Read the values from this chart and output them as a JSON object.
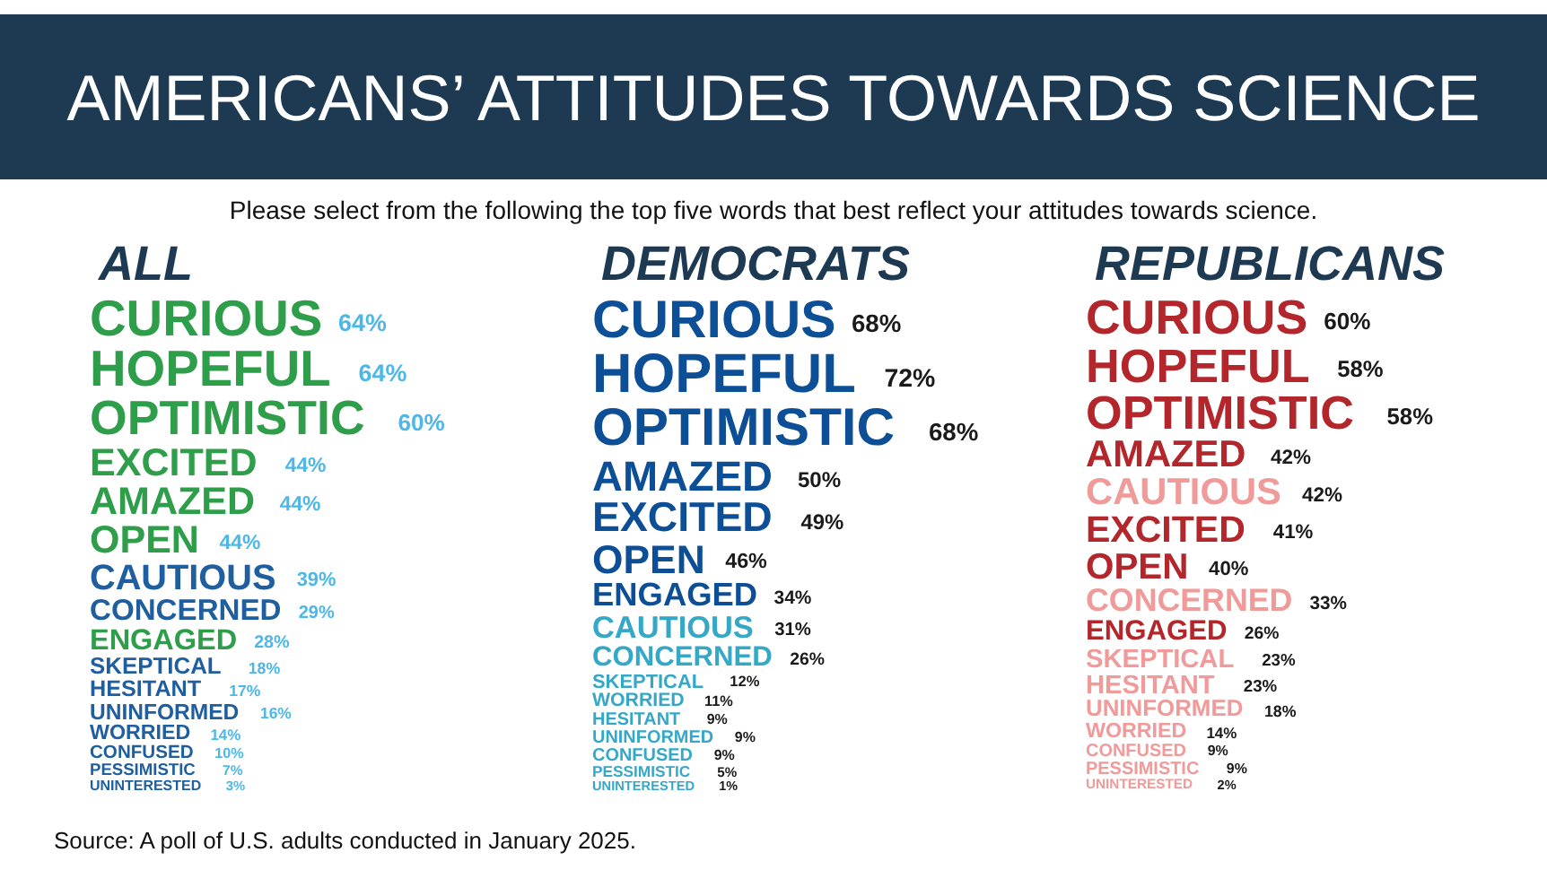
{
  "chart_data": [
    {
      "type": "other",
      "title": "AMERICANS’ ATTITUDES TOWARDS SCIENCE",
      "subtitle": "Please select from the following the top five words that best reflect your attitudes towards science.",
      "annotations": [
        "Source: A poll of U.S. adults conducted in January 2025."
      ],
      "xlabel": "ALL",
      "categories": [
        "CURIOUS",
        "HOPEFUL",
        "OPTIMISTIC",
        "EXCITED",
        "AMAZED",
        "OPEN",
        "CAUTIOUS",
        "CONCERNED",
        "ENGAGED",
        "SKEPTICAL",
        "HESITANT",
        "UNINFORMED",
        "WORRIED",
        "CONFUSED",
        "PESSIMISTIC",
        "UNINTERESTED"
      ],
      "values": [
        64,
        64,
        60,
        44,
        44,
        44,
        39,
        29,
        28,
        18,
        17,
        16,
        14,
        10,
        7,
        3
      ],
      "value_labels": [
        "64%",
        "64%",
        "60%",
        "44%",
        "44%",
        "44%",
        "39%",
        "29%",
        "28%",
        "18%",
        "17%",
        "16%",
        "14%",
        "10%",
        "7%",
        "3%"
      ],
      "colors": [
        "#2e9e4a",
        "#2e9e4a",
        "#2e9e4a",
        "#2e9e4a",
        "#2e9e4a",
        "#2e9e4a",
        "#1f5fa0",
        "#1f5fa0",
        "#2e9e4a",
        "#1f5fa0",
        "#1f5fa0",
        "#1f5fa0",
        "#1f5fa0",
        "#1f5fa0",
        "#1f5fa0",
        "#1f5fa0"
      ]
    },
    {
      "type": "other",
      "xlabel": "DEMOCRATS",
      "categories": [
        "CURIOUS",
        "HOPEFUL",
        "OPTIMISTIC",
        "AMAZED",
        "EXCITED",
        "OPEN",
        "ENGAGED",
        "CAUTIOUS",
        "CONCERNED",
        "SKEPTICAL",
        "WORRIED",
        "HESITANT",
        "UNINFORMED",
        "CONFUSED",
        "PESSIMISTIC",
        "UNINTERESTED"
      ],
      "values": [
        68,
        72,
        68,
        50,
        49,
        46,
        34,
        31,
        26,
        12,
        11,
        9,
        9,
        9,
        5,
        1
      ],
      "value_labels": [
        "68%",
        "72%",
        "68%",
        "50%",
        "49%",
        "46%",
        "34%",
        "31%",
        "26%",
        "12%",
        "11%",
        "9%",
        "9%",
        "9%",
        "5%",
        "1%"
      ],
      "colors": [
        "#0d4f96",
        "#0d4f96",
        "#0d4f96",
        "#0d4f96",
        "#0d4f96",
        "#0d4f96",
        "#0d4f96",
        "#35a8c8",
        "#35a8c8",
        "#35a8c8",
        "#35a8c8",
        "#35a8c8",
        "#35a8c8",
        "#35a8c8",
        "#35a8c8",
        "#35a8c8"
      ]
    },
    {
      "type": "other",
      "xlabel": "REPUBLICANS",
      "categories": [
        "CURIOUS",
        "HOPEFUL",
        "OPTIMISTIC",
        "AMAZED",
        "CAUTIOUS",
        "EXCITED",
        "OPEN",
        "CONCERNED",
        "ENGAGED",
        "SKEPTICAL",
        "HESITANT",
        "UNINFORMED",
        "WORRIED",
        "CONFUSED",
        "PESSIMISTIC",
        "UNINTERESTED"
      ],
      "values": [
        60,
        58,
        58,
        42,
        42,
        41,
        40,
        33,
        26,
        23,
        23,
        18,
        14,
        9,
        9,
        2
      ],
      "value_labels": [
        "60%",
        "58%",
        "58%",
        "42%",
        "42%",
        "41%",
        "40%",
        "33%",
        "26%",
        "23%",
        "23%",
        "18%",
        "14%",
        "9%",
        "9%",
        "2%"
      ],
      "colors": [
        "#b3262b",
        "#b3262b",
        "#b3262b",
        "#b3262b",
        "#f09a9a",
        "#b3262b",
        "#b3262b",
        "#f09a9a",
        "#b3262b",
        "#f09a9a",
        "#f09a9a",
        "#f09a9a",
        "#f09a9a",
        "#f09a9a",
        "#f09a9a",
        "#f09a9a"
      ]
    }
  ]
}
